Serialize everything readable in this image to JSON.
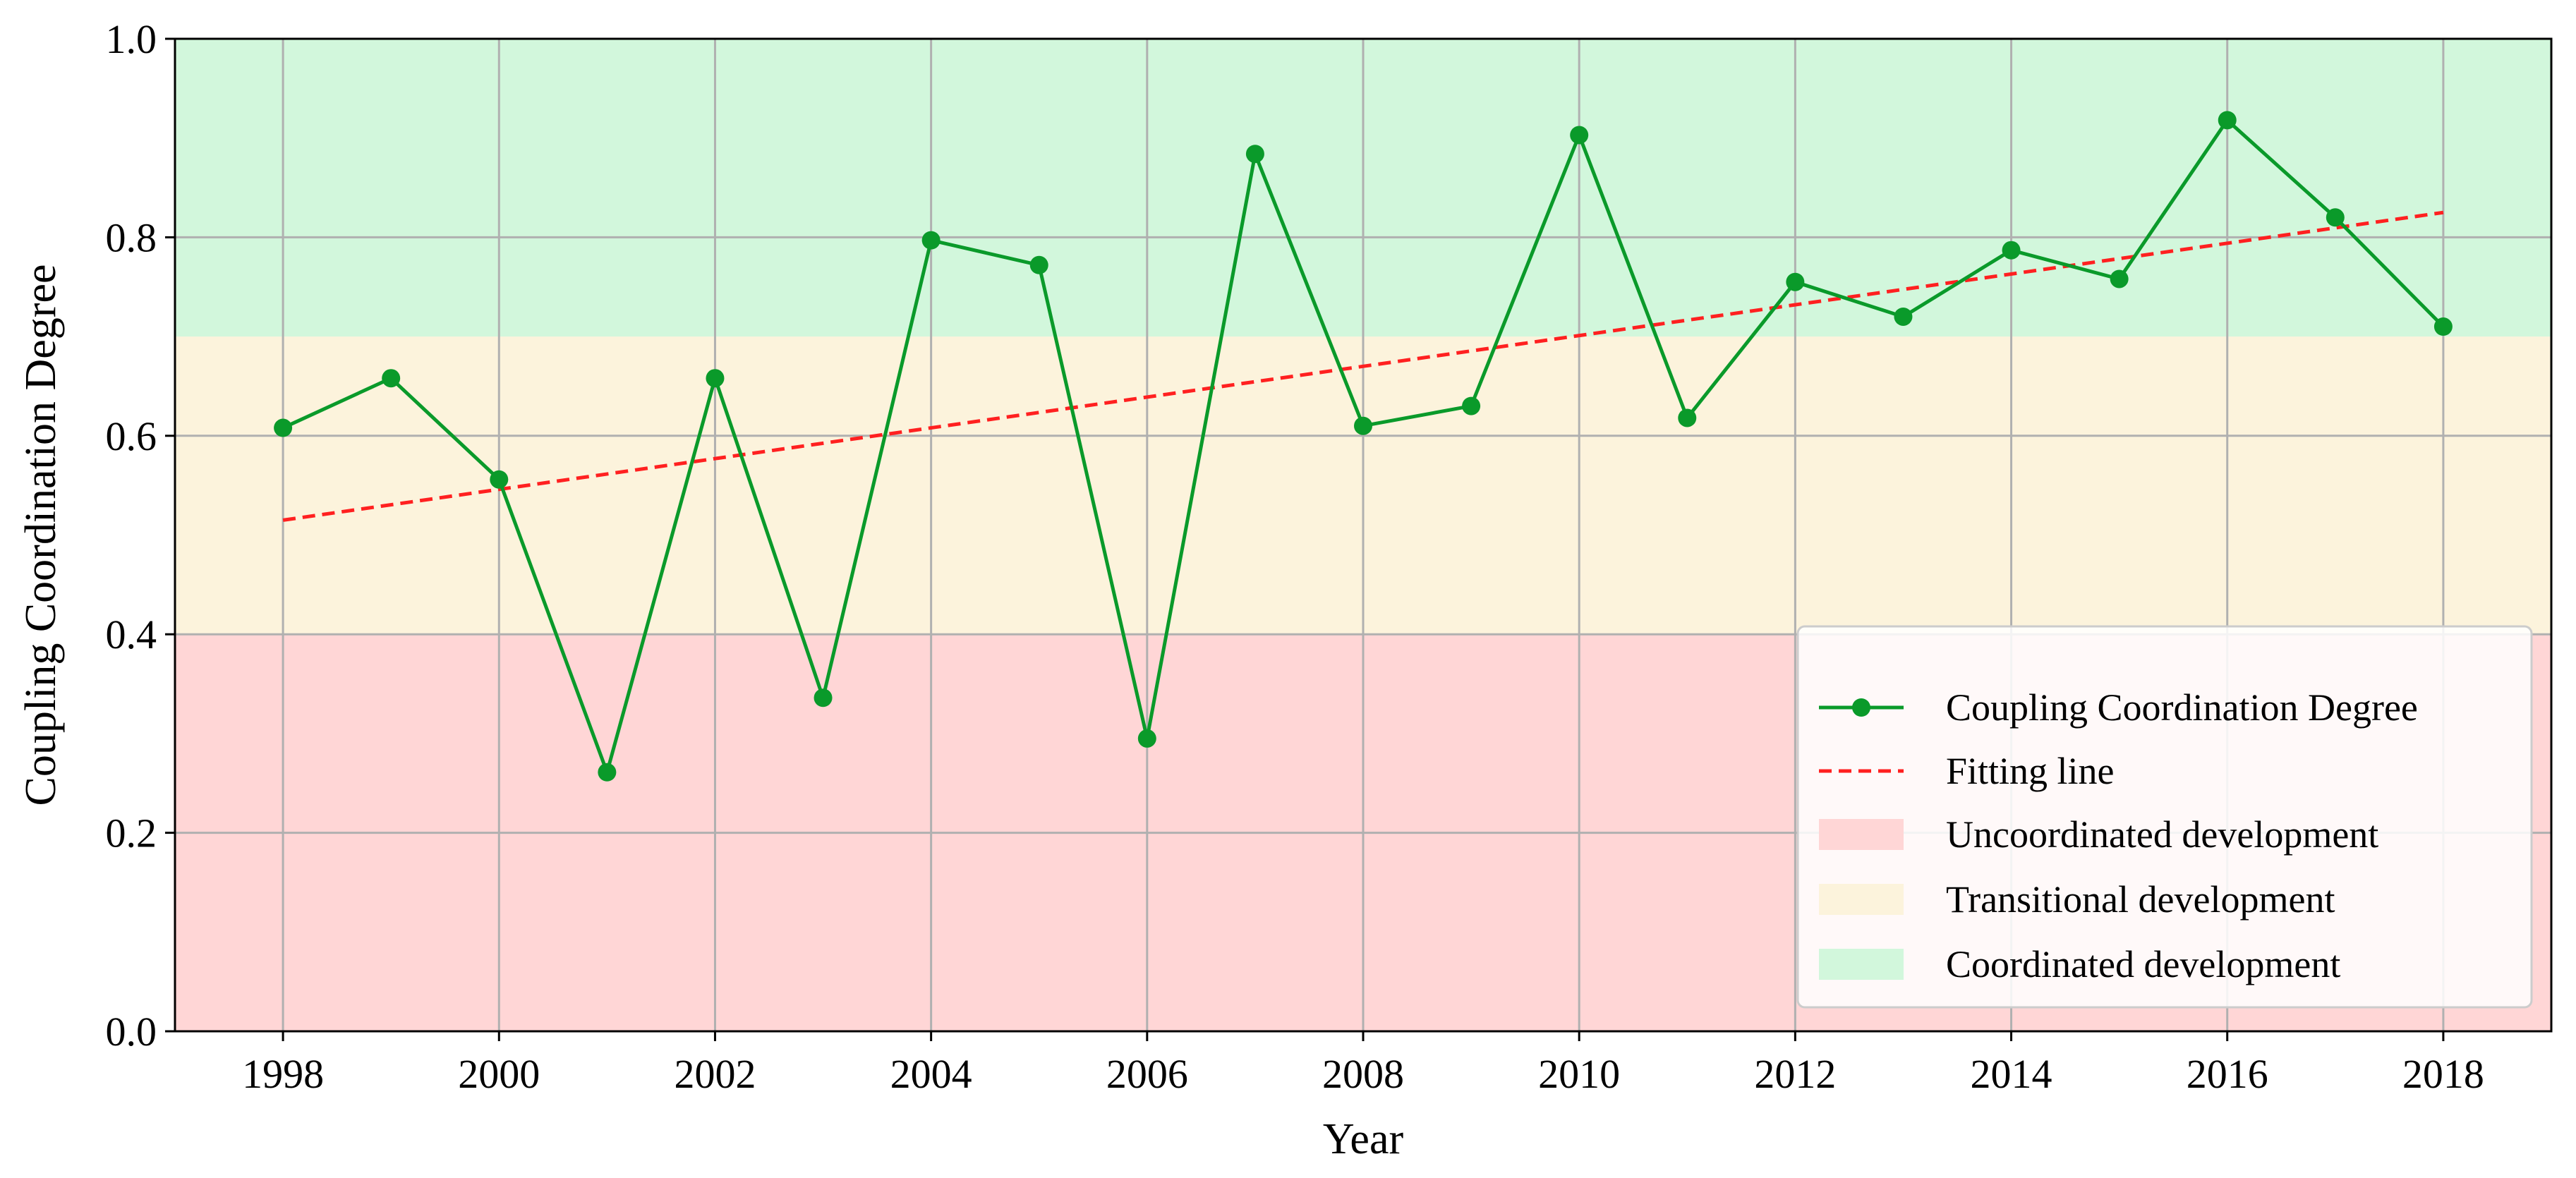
{
  "chart_data": {
    "type": "line",
    "title": "",
    "xlabel": "Year",
    "ylabel": "Coupling Coordination Degree",
    "xlim": [
      1997,
      2019
    ],
    "ylim": [
      0.0,
      1.0
    ],
    "xticks": [
      1998,
      2000,
      2002,
      2004,
      2006,
      2008,
      2010,
      2012,
      2014,
      2016,
      2018
    ],
    "yticks": [
      "0.0",
      "0.2",
      "0.4",
      "0.6",
      "0.8",
      "1.0"
    ],
    "grid": true,
    "legend_position": "lower-right",
    "x": [
      1998,
      1999,
      2000,
      2001,
      2002,
      2003,
      2004,
      2005,
      2006,
      2007,
      2008,
      2009,
      2010,
      2011,
      2012,
      2013,
      2014,
      2015,
      2016,
      2017,
      2018
    ],
    "series": [
      {
        "name": "Coupling Coordination Degree",
        "style": "line-markers",
        "color": "#0a9a2a",
        "values": [
          0.608,
          0.658,
          0.556,
          0.261,
          0.658,
          0.336,
          0.797,
          0.772,
          0.295,
          0.884,
          0.61,
          0.63,
          0.903,
          0.618,
          0.755,
          0.72,
          0.787,
          0.758,
          0.918,
          0.82,
          0.71
        ]
      },
      {
        "name": "Fitting line",
        "style": "dashed",
        "color": "#ff2020",
        "x": [
          1998,
          2018
        ],
        "values": [
          0.515,
          0.825
        ]
      }
    ],
    "bands": [
      {
        "name": "Uncoordinated development",
        "range": [
          0.0,
          0.4
        ],
        "color": "#ffd6d6"
      },
      {
        "name": "Transitional development",
        "range": [
          0.4,
          0.7
        ],
        "color": "#fcf3dc"
      },
      {
        "name": "Coordinated development",
        "range": [
          0.7,
          1.0
        ],
        "color": "#d2f7dc"
      }
    ]
  }
}
